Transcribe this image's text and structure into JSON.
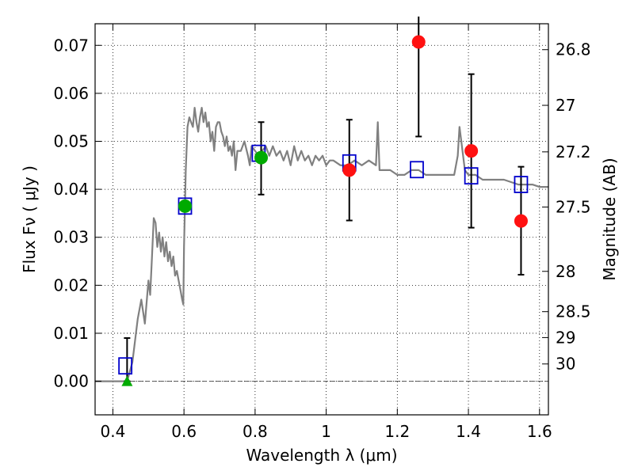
{
  "chart_data": {
    "type": "scatter",
    "title": "",
    "xlabel": "Wavelength  λ (μm)",
    "ylabel": "Flux  Fν  ( μJy )",
    "ylabel_right": "Magnitude (AB)",
    "xlim": [
      0.35,
      1.625
    ],
    "ylim": [
      -0.007,
      0.0745
    ],
    "grid": true,
    "x_ticks": [
      0.4,
      0.6,
      0.8,
      1.0,
      1.2,
      1.4,
      1.6
    ],
    "x_tick_labels": [
      "0.4",
      "0.6",
      "0.8",
      "1",
      "1.2",
      "1.4",
      "1.6"
    ],
    "y_ticks": [
      0.0,
      0.01,
      0.02,
      0.03,
      0.04,
      0.05,
      0.06,
      0.07
    ],
    "y_tick_labels": [
      "0.00",
      "0.01",
      "0.02",
      "0.03",
      "0.04",
      "0.05",
      "0.06",
      "0.07"
    ],
    "right_ticks": [
      {
        "label": "26.8",
        "flux": 0.0691
      },
      {
        "label": "27",
        "flux": 0.0575
      },
      {
        "label": "27.2",
        "flux": 0.0478
      },
      {
        "label": "27.5",
        "flux": 0.0363
      },
      {
        "label": "28",
        "flux": 0.0229
      },
      {
        "label": "28.5",
        "flux": 0.0145
      },
      {
        "label": "29",
        "flux": 0.0091
      },
      {
        "label": "30",
        "flux": 0.0036
      }
    ],
    "series": [
      {
        "kind": "line",
        "color": "#808080",
        "x": [
          0.35,
          0.44,
          0.455,
          0.47,
          0.48,
          0.49,
          0.5,
          0.505,
          0.51,
          0.515,
          0.52,
          0.525,
          0.53,
          0.535,
          0.54,
          0.545,
          0.55,
          0.555,
          0.56,
          0.565,
          0.57,
          0.575,
          0.58,
          0.585,
          0.59,
          0.595,
          0.598,
          0.6,
          0.605,
          0.61,
          0.615,
          0.62,
          0.625,
          0.63,
          0.635,
          0.64,
          0.645,
          0.65,
          0.655,
          0.66,
          0.665,
          0.67,
          0.675,
          0.68,
          0.685,
          0.69,
          0.695,
          0.7,
          0.705,
          0.71,
          0.715,
          0.72,
          0.725,
          0.73,
          0.735,
          0.74,
          0.745,
          0.75,
          0.76,
          0.77,
          0.78,
          0.785,
          0.79,
          0.8,
          0.81,
          0.82,
          0.83,
          0.84,
          0.85,
          0.86,
          0.87,
          0.88,
          0.89,
          0.9,
          0.91,
          0.92,
          0.93,
          0.94,
          0.95,
          0.96,
          0.97,
          0.98,
          0.99,
          1.0,
          1.01,
          1.02,
          1.04,
          1.06,
          1.08,
          1.1,
          1.12,
          1.14,
          1.145,
          1.15,
          1.16,
          1.18,
          1.2,
          1.22,
          1.24,
          1.26,
          1.28,
          1.3,
          1.32,
          1.34,
          1.36,
          1.37,
          1.375,
          1.38,
          1.39,
          1.4,
          1.42,
          1.44,
          1.46,
          1.48,
          1.5,
          1.52,
          1.54,
          1.56,
          1.58,
          1.6,
          1.625
        ],
        "y": [
          0.0,
          0.0,
          0.004,
          0.013,
          0.017,
          0.012,
          0.021,
          0.018,
          0.026,
          0.034,
          0.033,
          0.028,
          0.031,
          0.027,
          0.03,
          0.026,
          0.029,
          0.025,
          0.027,
          0.024,
          0.026,
          0.022,
          0.023,
          0.021,
          0.019,
          0.017,
          0.016,
          0.028,
          0.044,
          0.053,
          0.055,
          0.054,
          0.053,
          0.057,
          0.054,
          0.052,
          0.055,
          0.057,
          0.054,
          0.056,
          0.053,
          0.054,
          0.05,
          0.052,
          0.048,
          0.053,
          0.054,
          0.054,
          0.052,
          0.051,
          0.049,
          0.051,
          0.048,
          0.049,
          0.047,
          0.05,
          0.044,
          0.048,
          0.048,
          0.05,
          0.047,
          0.045,
          0.049,
          0.048,
          0.047,
          0.048,
          0.049,
          0.047,
          0.049,
          0.047,
          0.048,
          0.046,
          0.048,
          0.045,
          0.049,
          0.046,
          0.048,
          0.046,
          0.047,
          0.045,
          0.047,
          0.046,
          0.047,
          0.045,
          0.046,
          0.046,
          0.045,
          0.045,
          0.046,
          0.045,
          0.046,
          0.045,
          0.054,
          0.044,
          0.044,
          0.044,
          0.043,
          0.043,
          0.044,
          0.044,
          0.043,
          0.043,
          0.043,
          0.043,
          0.043,
          0.047,
          0.053,
          0.05,
          0.044,
          0.043,
          0.043,
          0.042,
          0.042,
          0.042,
          0.042,
          0.0415,
          0.041,
          0.041,
          0.041,
          0.0405,
          0.0405
        ]
      },
      {
        "kind": "open-square",
        "color": "#0000cc",
        "x": [
          0.435,
          0.603,
          0.81,
          1.065,
          1.255,
          1.408,
          1.548
        ],
        "y": [
          0.0032,
          0.0365,
          0.0475,
          0.0455,
          0.0441,
          0.0428,
          0.041
        ]
      },
      {
        "kind": "filled-circle",
        "color": "#00aa00",
        "x": [
          0.603,
          0.817
        ],
        "y": [
          0.0365,
          0.0466
        ]
      },
      {
        "kind": "filled-circle",
        "color": "#ff1111",
        "x": [
          1.065,
          1.26,
          1.408,
          1.548
        ],
        "y": [
          0.044,
          0.0707,
          0.048,
          0.0334
        ]
      },
      {
        "kind": "triangle",
        "color": "#00aa00",
        "x": [
          0.44
        ],
        "y": [
          0.0
        ]
      }
    ],
    "error_bars": [
      {
        "x": 0.44,
        "low": 0.0,
        "high": 0.009
      },
      {
        "x": 0.817,
        "low": 0.0389,
        "high": 0.054
      },
      {
        "x": 1.065,
        "low": 0.0335,
        "high": 0.0545
      },
      {
        "x": 1.26,
        "low": 0.051,
        "high": 0.076
      },
      {
        "x": 1.408,
        "low": 0.032,
        "high": 0.064
      },
      {
        "x": 1.548,
        "low": 0.0222,
        "high": 0.0447
      }
    ]
  }
}
